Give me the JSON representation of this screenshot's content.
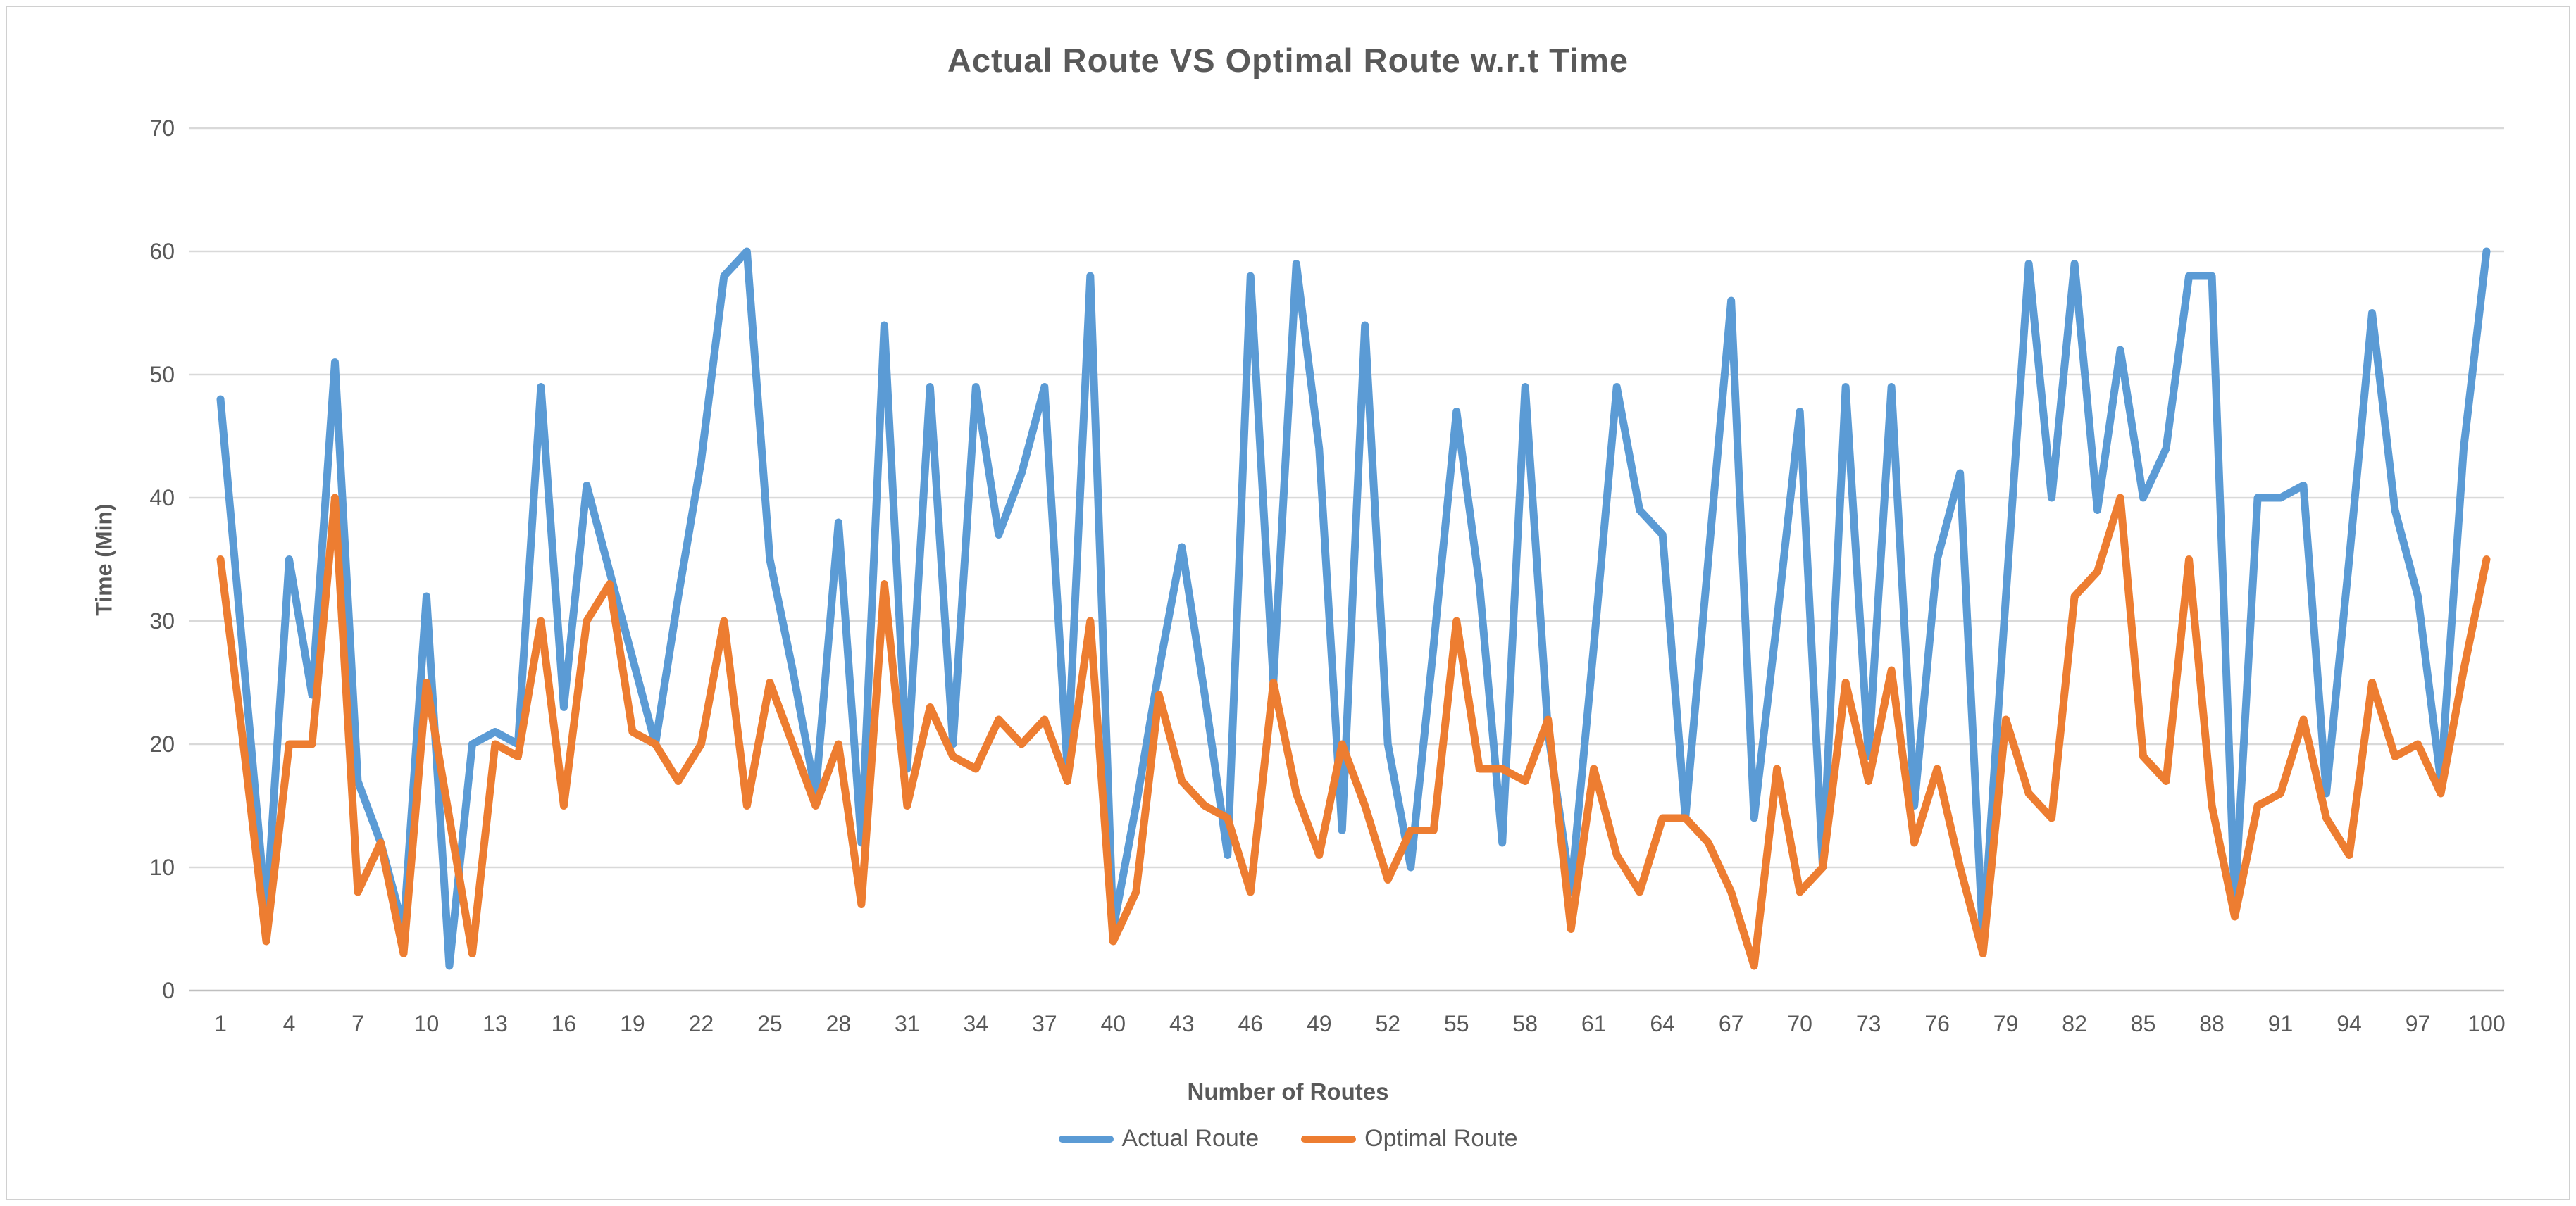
{
  "window": {
    "background_color": "#FFFFFF",
    "frame_border_color": "#D0D0D0"
  },
  "chart_data": {
    "type": "line",
    "title": "Actual Route VS Optimal Route w.r.t Time",
    "xlabel": "Number of Routes",
    "ylabel": "Time (Min)",
    "x_range": [
      1,
      100
    ],
    "x_tick_start": 1,
    "x_tick_step": 3,
    "ylim": [
      0,
      70
    ],
    "ytick_step": 10,
    "grid": "horizontal",
    "gridline_color": "#D9D9D9",
    "axis_line_color": "#BFBFBF",
    "text_color": "#595959",
    "legend_position": "bottom",
    "series": [
      {
        "name": "Actual Route",
        "color": "#5B9BD5",
        "values": [
          48,
          27,
          6,
          35,
          24,
          51,
          17,
          12,
          5,
          32,
          2,
          20,
          21,
          20,
          49,
          23,
          41,
          34,
          27,
          20,
          32,
          43,
          58,
          60,
          35,
          26,
          16,
          38,
          12,
          54,
          18,
          49,
          20,
          49,
          37,
          42,
          49,
          18,
          58,
          5,
          15,
          26,
          36,
          24,
          11,
          58,
          25,
          59,
          44,
          13,
          54,
          20,
          10,
          28,
          47,
          33,
          12,
          49,
          21,
          8,
          28,
          49,
          39,
          37,
          14,
          35,
          56,
          14,
          30,
          47,
          10,
          49,
          19,
          49,
          15,
          35,
          42,
          4,
          32,
          59,
          40,
          59,
          39,
          52,
          40,
          44,
          58,
          58,
          7,
          40,
          40,
          41,
          16,
          35,
          55,
          39,
          32,
          17,
          44,
          60
        ]
      },
      {
        "name": "Optimal Route",
        "color": "#ED7D31",
        "values": [
          35,
          20,
          4,
          20,
          20,
          40,
          8,
          12,
          3,
          25,
          14,
          3,
          20,
          19,
          30,
          15,
          30,
          33,
          21,
          20,
          17,
          20,
          30,
          15,
          25,
          20,
          15,
          20,
          7,
          33,
          15,
          23,
          19,
          18,
          22,
          20,
          22,
          17,
          30,
          4,
          8,
          24,
          17,
          15,
          14,
          8,
          25,
          16,
          11,
          20,
          15,
          9,
          13,
          13,
          30,
          18,
          18,
          17,
          22,
          5,
          18,
          11,
          8,
          14,
          14,
          12,
          8,
          2,
          18,
          8,
          10,
          25,
          17,
          26,
          12,
          18,
          10,
          3,
          22,
          16,
          14,
          32,
          34,
          40,
          19,
          17,
          35,
          15,
          6,
          15,
          16,
          22,
          14,
          11,
          25,
          19,
          20,
          16,
          26,
          35
        ]
      }
    ]
  }
}
